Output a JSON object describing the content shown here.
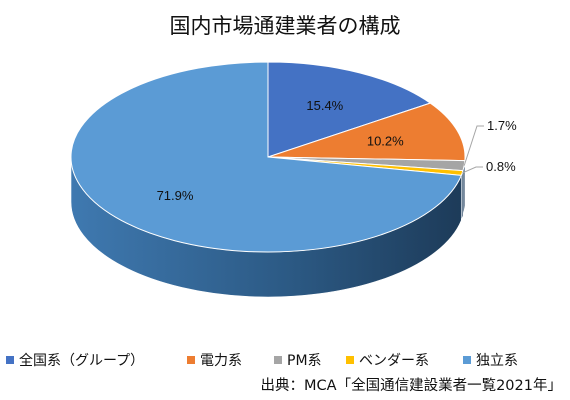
{
  "chart_data": {
    "type": "pie",
    "title": "国内市場通建業者の構成",
    "categories": [
      "全国系（グループ）",
      "電力系",
      "PM系",
      "ベンダー系",
      "独立系"
    ],
    "values": [
      15.4,
      10.2,
      1.7,
      0.8,
      71.9
    ],
    "data_labels": [
      "15.4%",
      "10.2%",
      "1.7%",
      "0.8%",
      "71.9%"
    ],
    "colors": [
      "#4472C4",
      "#ED7D31",
      "#A5A5A5",
      "#FFC000",
      "#5B9BD5"
    ],
    "style": "3d",
    "legend_position": "bottom"
  },
  "source_note": "出典：MCA「全国通信建設業者一覧2021年」"
}
